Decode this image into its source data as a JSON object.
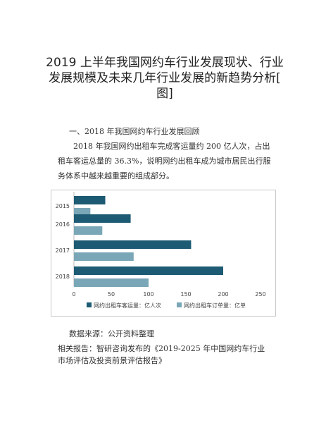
{
  "article": {
    "title_lines": [
      "2019 上半年我国网约车行业发展现状、行业",
      "发展规模及未来几年行业发展的新趋势分析[",
      "图]"
    ],
    "section_heading": "一、2018 年我国网约车行业发展回顾",
    "paragraph_lines": [
      "2018 年我国网约出租车完成客运量约 200 亿人次，占出",
      "租车客运总量的 36.3%，说明网约出租车成为城市居民出行服",
      "务体系中越来越重要的组成部分。"
    ],
    "source": "数据来源：公开资料整理",
    "related_lines": [
      "相关报告：智研咨询发布的《2019-2025 年中国网约车行业",
      "市场评估及投资前景评估报告》"
    ]
  },
  "chart_data": {
    "type": "bar",
    "orientation": "horizontal",
    "categories": [
      "2015",
      "2016",
      "2017",
      "2018"
    ],
    "series": [
      {
        "name": "网约出租车客运量：亿人次",
        "values": [
          42,
          76,
          157,
          200
        ],
        "color": "#1d5a73"
      },
      {
        "name": "网约出租车订单量：亿单",
        "values": [
          22,
          38,
          80,
          100
        ],
        "color": "#7aa7b7"
      }
    ],
    "xlim": [
      0,
      250
    ],
    "xticks": [
      "0",
      "50",
      "100",
      "150",
      "200",
      "250"
    ],
    "grid": false,
    "legend_position": "bottom"
  }
}
